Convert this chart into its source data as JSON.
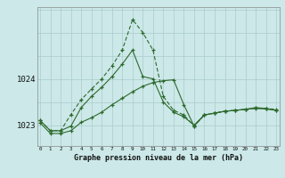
{
  "title": "Graphe pression niveau de la mer (hPa)",
  "bg": "#cce8e8",
  "grid_color": "#aacccc",
  "line_color": "#2d6a2d",
  "x_ticks": [
    0,
    1,
    2,
    3,
    4,
    5,
    6,
    7,
    8,
    9,
    10,
    11,
    12,
    13,
    14,
    15,
    16,
    17,
    18,
    19,
    20,
    21,
    22,
    23
  ],
  "y_ticks": [
    1023,
    1024
  ],
  "ylim": [
    1022.55,
    1025.55
  ],
  "xlim": [
    -0.3,
    23.3
  ],
  "s_dashed_x": [
    0,
    1,
    2,
    3,
    4,
    5,
    6,
    7,
    8,
    9,
    10,
    11,
    12,
    13,
    14,
    15,
    16,
    17,
    18,
    19,
    20,
    21,
    22,
    23
  ],
  "s_dashed_y": [
    1023.1,
    1022.88,
    1022.88,
    1023.23,
    1023.55,
    1023.78,
    1024.0,
    1024.28,
    1024.62,
    1025.28,
    1025.0,
    1024.62,
    1023.62,
    1023.32,
    1023.22,
    1022.98,
    1023.22,
    1023.26,
    1023.3,
    1023.32,
    1023.34,
    1023.37,
    1023.36,
    1023.34
  ],
  "s_solid1_x": [
    0,
    1,
    2,
    3,
    4,
    5,
    6,
    7,
    8,
    9,
    10,
    11,
    12,
    13,
    14,
    15,
    16,
    17,
    18,
    19,
    20,
    21,
    22,
    23
  ],
  "s_solid1_y": [
    1023.1,
    1022.88,
    1022.88,
    1022.98,
    1023.38,
    1023.62,
    1023.82,
    1024.05,
    1024.32,
    1024.62,
    1024.05,
    1024.0,
    1023.5,
    1023.28,
    1023.18,
    1023.0,
    1023.22,
    1023.26,
    1023.3,
    1023.32,
    1023.34,
    1023.38,
    1023.36,
    1023.32
  ],
  "s_solid2_x": [
    0,
    1,
    2,
    3,
    4,
    5,
    6,
    7,
    8,
    9,
    10,
    11,
    12,
    13,
    14,
    15,
    16,
    17,
    18,
    19,
    20,
    21,
    22,
    23
  ],
  "s_solid2_y": [
    1023.05,
    1022.82,
    1022.82,
    1022.88,
    1023.06,
    1023.16,
    1023.28,
    1023.44,
    1023.58,
    1023.72,
    1023.84,
    1023.92,
    1023.96,
    1023.98,
    1023.44,
    1022.98,
    1023.22,
    1023.26,
    1023.3,
    1023.32,
    1023.34,
    1023.36,
    1023.35,
    1023.32
  ]
}
